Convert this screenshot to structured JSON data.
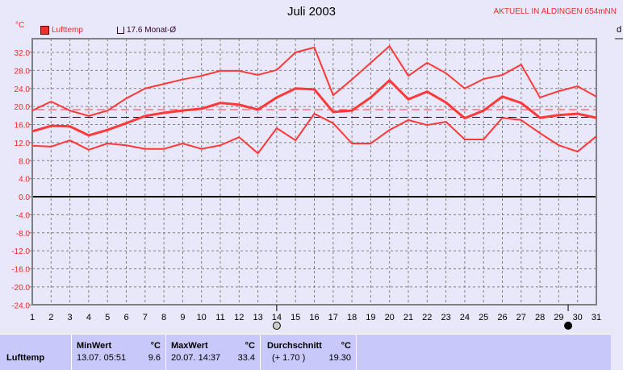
{
  "header": {
    "title": "Juli 2003",
    "station": "AKTUELL IN ALDINGEN 654mNN",
    "unit": "°C",
    "right_label": "d"
  },
  "legend": {
    "series": "Lufttemp",
    "mean_label": "17.6 Monat-Ø"
  },
  "colors": {
    "series": "#ff3838",
    "mean_line": "#300030",
    "background": "#e8e8fa",
    "panel": "#c8c8fa"
  },
  "chart_data": {
    "type": "line",
    "title": "Juli 2003",
    "ylabel": "°C",
    "ylim": [
      -24,
      35
    ],
    "grid": true,
    "x": [
      1,
      2,
      3,
      4,
      5,
      6,
      7,
      8,
      9,
      10,
      11,
      12,
      13,
      14,
      15,
      16,
      17,
      18,
      19,
      20,
      21,
      22,
      23,
      24,
      25,
      26,
      27,
      28,
      29,
      30,
      31
    ],
    "yticks": [
      "32.0",
      "28.0",
      "24.0",
      "20.0",
      "16.0",
      "12.0",
      "8.0",
      "4.0",
      "0.0",
      "-4.0",
      "-8.0",
      "-12.0",
      "-16.0",
      "-20.0",
      "-24.0"
    ],
    "series": [
      {
        "name": "Lufttemp max",
        "values": [
          19.1,
          21.1,
          19.1,
          17.9,
          19.1,
          21.8,
          24,
          25,
          26,
          26.8,
          27.9,
          27.9,
          27,
          28.1,
          32,
          33.1,
          22.5,
          26,
          29.7,
          33.4,
          26.8,
          29.7,
          27.4,
          24,
          26.1,
          27,
          29.3,
          22,
          23.4,
          24.5,
          22.2
        ]
      },
      {
        "name": "Lufttemp mean",
        "values": [
          14.5,
          15.7,
          15.6,
          13.6,
          14.8,
          16.3,
          17.9,
          18.6,
          19.1,
          19.5,
          20.8,
          20.4,
          19.3,
          22,
          24,
          23.8,
          18.8,
          19.1,
          22,
          25.8,
          21.6,
          23.3,
          20.9,
          17.4,
          19.1,
          22.2,
          20.8,
          17.5,
          18.1,
          18.4,
          17.5
        ]
      },
      {
        "name": "Lufttemp min",
        "values": [
          11.3,
          11.1,
          12.5,
          10.4,
          11.8,
          11.4,
          10.6,
          10.6,
          11.8,
          10.6,
          11.4,
          13.2,
          9.6,
          15.2,
          12.5,
          18.4,
          16.3,
          11.8,
          11.8,
          14.8,
          17,
          15.9,
          16.6,
          12.7,
          12.7,
          17.5,
          17,
          14.1,
          11.4,
          10,
          13.4
        ]
      }
    ],
    "reference_lines": [
      {
        "value": 19.3,
        "color": "#ff3838"
      },
      {
        "value": 17.6,
        "color": "#300030"
      }
    ],
    "moon_phases": [
      {
        "day": 14,
        "phase": "full-moon"
      },
      {
        "day": 29.5,
        "phase": "new-moon"
      }
    ]
  },
  "panel": {
    "row_label": "Lufttemp",
    "min": {
      "header": "MinWert",
      "unit": "°C",
      "date": "13.07.  05:51",
      "value": "9.6"
    },
    "max": {
      "header": "MaxWert",
      "unit": "°C",
      "date": "20.07.  14:37",
      "value": "33.4"
    },
    "avg": {
      "header": "Durchschnitt",
      "unit": "°C",
      "delta": "(+ 1.70 )",
      "value": "19.30"
    }
  }
}
